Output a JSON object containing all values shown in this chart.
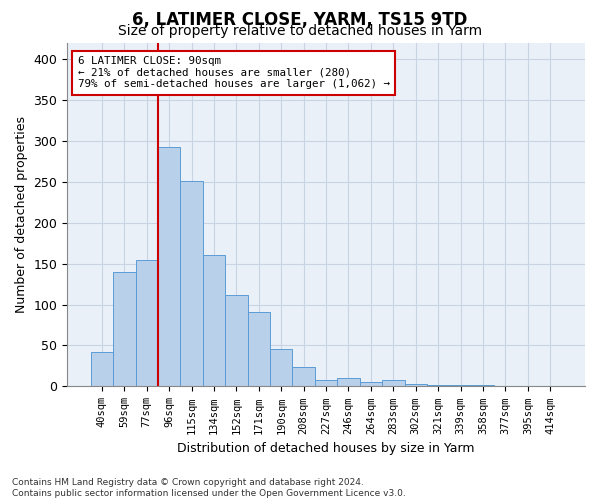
{
  "title1": "6, LATIMER CLOSE, YARM, TS15 9TD",
  "title2": "Size of property relative to detached houses in Yarm",
  "xlabel": "Distribution of detached houses by size in Yarm",
  "ylabel": "Number of detached properties",
  "categories": [
    "40sqm",
    "59sqm",
    "77sqm",
    "96sqm",
    "115sqm",
    "134sqm",
    "152sqm",
    "171sqm",
    "190sqm",
    "208sqm",
    "227sqm",
    "246sqm",
    "264sqm",
    "283sqm",
    "302sqm",
    "321sqm",
    "339sqm",
    "358sqm",
    "377sqm",
    "395sqm",
    "414sqm"
  ],
  "values": [
    42,
    140,
    155,
    293,
    251,
    160,
    112,
    91,
    46,
    24,
    8,
    10,
    5,
    8,
    3,
    2,
    2,
    2,
    1,
    1,
    1
  ],
  "bar_color": "#b8d0ea",
  "bar_edge_color": "#5b9bd5",
  "vline_color": "#cc0000",
  "vline_x": 2.5,
  "annotation_line1": "6 LATIMER CLOSE: 90sqm",
  "annotation_line2": "← 21% of detached houses are smaller (280)",
  "annotation_line3": "79% of semi-detached houses are larger (1,062) →",
  "annotation_box_color": "#ffffff",
  "annotation_box_edge": "#cc0000",
  "footnote": "Contains HM Land Registry data © Crown copyright and database right 2024.\nContains public sector information licensed under the Open Government Licence v3.0.",
  "ylim": [
    0,
    420
  ],
  "yticks": [
    0,
    50,
    100,
    150,
    200,
    250,
    300,
    350,
    400
  ],
  "title_fontsize": 12,
  "subtitle_fontsize": 10,
  "bar_width": 1.0,
  "grid_color": "#c8d4e3",
  "background_color": "#eaf0f8"
}
